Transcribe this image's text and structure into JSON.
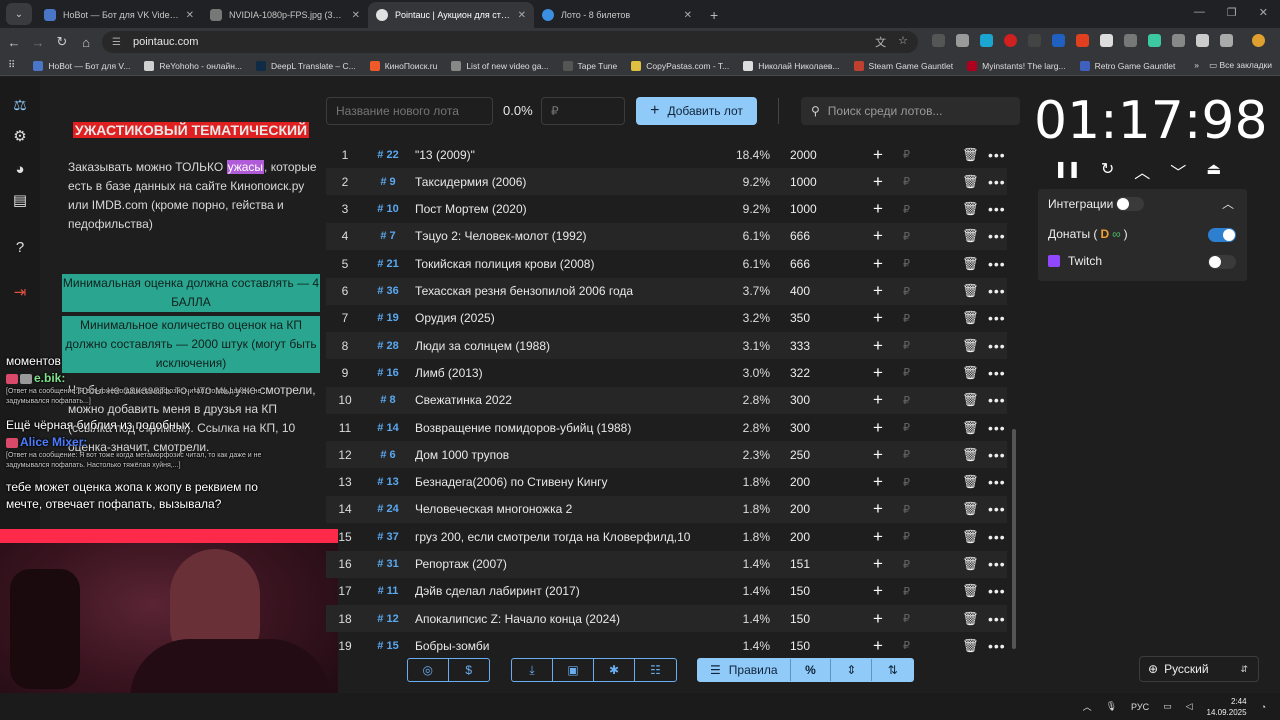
{
  "browser": {
    "tabs": [
      {
        "title": "HoBot — Бот для VK Video Live",
        "favicon_color": "#4a76c8",
        "active": false
      },
      {
        "title": "NVIDIA-1080p-FPS.jpg (3840×2160)",
        "favicon_color": "#777777",
        "active": false
      },
      {
        "title": "Pointauc | Аукцион для стримов",
        "favicon_color": "#e0e0e0",
        "active": true
      },
      {
        "title": "Лото - 8 билетов",
        "favicon_color": "#3c8ee0",
        "active": false
      }
    ],
    "url": "pointauc.com",
    "bookmarks": [
      {
        "label": "HoBot — Бот для V...",
        "color": "#4a76c8"
      },
      {
        "label": "ReYohoho - онлайн...",
        "color": "#d0d0d0"
      },
      {
        "label": "DeepL Translate – C...",
        "color": "#0f2b46"
      },
      {
        "label": "КиноПоиск.ru",
        "color": "#f05a28"
      },
      {
        "label": "List of new video ga...",
        "color": "#888888"
      },
      {
        "label": "Tape Tune",
        "color": "#555555"
      },
      {
        "label": "CopyPastas.com - T...",
        "color": "#e0c040"
      },
      {
        "label": "Николай Николаев...",
        "color": "#dddddd"
      },
      {
        "label": "Steam Game Gauntlet",
        "color": "#c04030"
      },
      {
        "label": "Myinstants! The larg...",
        "color": "#b00020"
      },
      {
        "label": "Retro Game Gauntlet",
        "color": "#4060c0"
      }
    ],
    "all_bookmarks": "Все закладки"
  },
  "rules": {
    "heading": "УЖАСТИКОВЫЙ ТЕМАТИЧЕСКИЙ",
    "p1_a": "Заказывать можно ТОЛЬКО ",
    "p1_hl": "ужасы",
    "p1_b": ", которые есть в базе данных на сайте Кинопоиск.ру или IMDB.com (кроме порно, гейства и педофильства)",
    "g1": "Минимальная оценка должна составлять — 4 БАЛЛА",
    "g2": "Минимальное количество оценок на КП должно составлять — 2000 штук (могут быть исключения)",
    "p2": "Чтобы не заказать то, что мы уже смотрели, можно добавить меня в друзья на КП (ссылка под стримом). Ссылка на КП, 10 оценка-значит, смотрели."
  },
  "chat": {
    "line1": "моментов",
    "user1": "e.bik:",
    "reply1": "[Ответ на сообщение: Я вот тоже когда метаморфозис читал, то как даже и не задумывался пофапать...]",
    "line2": "Ещё чёрная библия из подобных",
    "user2": "Alice Mixer:",
    "reply2": "[Ответ на сообщение: Я вот тоже когда метаморфозис читал, то как даже и не задумывался пофапать. Настолько тяжёлая хуйня,...]",
    "line3": "тебе может оценка жопа к жопу в реквием по мечте, отвечает пофапать, вызывала?"
  },
  "controls": {
    "name_placeholder": "Название нового лота",
    "percent": "0.0%",
    "amount_placeholder": "₽",
    "add_label": "Добавить лот",
    "search_placeholder": "Поиск среди лотов..."
  },
  "lots": [
    {
      "idx": "1",
      "num": "# 22",
      "name": "\"13 (2009)\"",
      "pct": "18.4%",
      "amount": "2000"
    },
    {
      "idx": "2",
      "num": "# 9",
      "name": "Таксидермия (2006)",
      "pct": "9.2%",
      "amount": "1000"
    },
    {
      "idx": "3",
      "num": "# 10",
      "name": "Пост Мортем (2020)",
      "pct": "9.2%",
      "amount": "1000"
    },
    {
      "idx": "4",
      "num": "# 7",
      "name": "Тэцуо 2: Человек-молот (1992)",
      "pct": "6.1%",
      "amount": "666"
    },
    {
      "idx": "5",
      "num": "# 21",
      "name": "Токийская полиция крови (2008)",
      "pct": "6.1%",
      "amount": "666"
    },
    {
      "idx": "6",
      "num": "# 36",
      "name": "Техасская резня бензопилой 2006 года",
      "pct": "3.7%",
      "amount": "400"
    },
    {
      "idx": "7",
      "num": "# 19",
      "name": "Орудия (2025)",
      "pct": "3.2%",
      "amount": "350"
    },
    {
      "idx": "8",
      "num": "# 28",
      "name": "Люди за солнцем (1988)",
      "pct": "3.1%",
      "amount": "333"
    },
    {
      "idx": "9",
      "num": "# 16",
      "name": "Лимб (2013)",
      "pct": "3.0%",
      "amount": "322"
    },
    {
      "idx": "10",
      "num": "# 8",
      "name": "Свежатинка 2022",
      "pct": "2.8%",
      "amount": "300"
    },
    {
      "idx": "11",
      "num": "# 14",
      "name": "Возвращение помидоров-убийц (1988)",
      "pct": "2.8%",
      "amount": "300"
    },
    {
      "idx": "12",
      "num": "# 6",
      "name": "Дом 1000 трупов",
      "pct": "2.3%",
      "amount": "250"
    },
    {
      "idx": "13",
      "num": "# 13",
      "name": "Безнадега(2006) по Стивену Кингу",
      "pct": "1.8%",
      "amount": "200"
    },
    {
      "idx": "14",
      "num": "# 24",
      "name": "Человеческая многоножка 2",
      "pct": "1.8%",
      "amount": "200"
    },
    {
      "idx": "15",
      "num": "# 37",
      "name": "груз 200, если смотрели тогда на Кловерфилд,10",
      "pct": "1.8%",
      "amount": "200"
    },
    {
      "idx": "16",
      "num": "# 31",
      "name": "Репортаж (2007)",
      "pct": "1.4%",
      "amount": "151"
    },
    {
      "idx": "17",
      "num": "# 11",
      "name": "Дэйв сделал лабиринт (2017)",
      "pct": "1.4%",
      "amount": "150"
    },
    {
      "idx": "18",
      "num": "# 12",
      "name": "Апокалипсис Z: Начало конца (2024)",
      "pct": "1.4%",
      "amount": "150"
    },
    {
      "idx": "19",
      "num": "# 15",
      "name": "Бобры-зомби",
      "pct": "1.4%",
      "amount": "150"
    }
  ],
  "lot_plus": "+",
  "lot_rub": "₽",
  "toolbar": {
    "rules_label": "Правила",
    "percent_icon": "%"
  },
  "timer": {
    "value": "01:17:98"
  },
  "integrations": {
    "title": "Интеграции",
    "donations_label": "Донаты (",
    "donations_close": ")",
    "twitch_label": "Twitch"
  },
  "language": "Русский",
  "taskbar": {
    "lang": "РУС",
    "time": "2:44",
    "date": "14.09.2025"
  },
  "colors": {
    "accent": "#90caf9",
    "lot_number": "#5aa8f0",
    "heading_bg": "#e02020",
    "green_block": "#2aa690",
    "purple_highlight": "#b05cd8"
  }
}
